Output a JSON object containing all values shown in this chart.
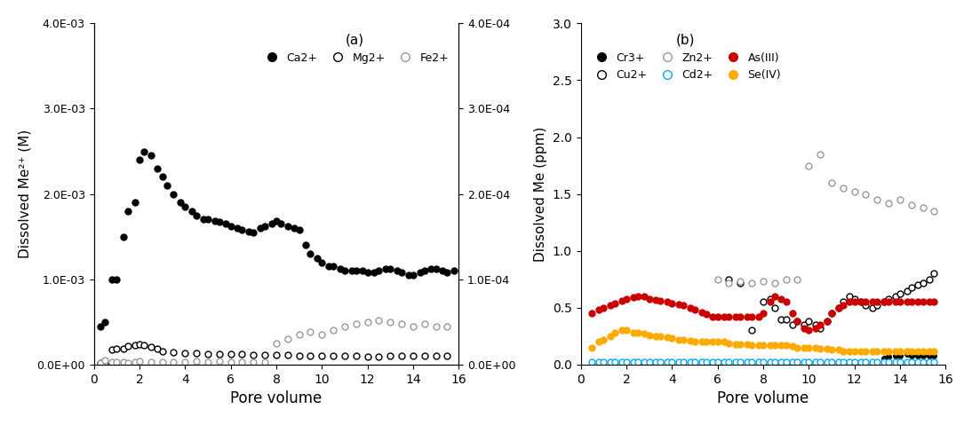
{
  "panel_a": {
    "title": "(a)",
    "xlabel": "Pore volume",
    "ylabel_left": "Dissolved Me²⁺ (M)",
    "ylabel_right": "",
    "xlim": [
      0,
      16
    ],
    "ylim_left": [
      0,
      0.004
    ],
    "ylim_right": [
      0,
      0.0004
    ],
    "yticks_left": [
      0,
      0.001,
      0.002,
      0.003,
      0.004
    ],
    "yticks_right": [
      0,
      0.0001,
      0.0002,
      0.0003,
      0.0004
    ],
    "ytick_labels_left": [
      "0.0E+00",
      "1.0E-03",
      "2.0E-03",
      "3.0E-03",
      "4.0E-03"
    ],
    "ytick_labels_right": [
      "0.0E+00",
      "1.0E-04",
      "2.0E-04",
      "3.0E-04",
      "4.0E-04"
    ],
    "Ca2+": {
      "x": [
        0.3,
        0.5,
        0.8,
        1.0,
        1.3,
        1.5,
        1.8,
        2.0,
        2.2,
        2.5,
        2.8,
        3.0,
        3.2,
        3.5,
        3.8,
        4.0,
        4.3,
        4.5,
        4.8,
        5.0,
        5.3,
        5.5,
        5.8,
        6.0,
        6.3,
        6.5,
        6.8,
        7.0,
        7.3,
        7.5,
        7.8,
        8.0,
        8.2,
        8.5,
        8.8,
        9.0,
        9.3,
        9.5,
        9.8,
        10.0,
        10.3,
        10.5,
        10.8,
        11.0,
        11.3,
        11.5,
        11.8,
        12.0,
        12.3,
        12.5,
        12.8,
        13.0,
        13.3,
        13.5,
        13.8,
        14.0,
        14.3,
        14.5,
        14.8,
        15.0,
        15.3,
        15.5,
        15.8
      ],
      "y": [
        0.00045,
        0.0005,
        0.001,
        0.001,
        0.0015,
        0.0018,
        0.0019,
        0.0024,
        0.0025,
        0.00245,
        0.0023,
        0.0022,
        0.0021,
        0.002,
        0.0019,
        0.00185,
        0.0018,
        0.00175,
        0.0017,
        0.0017,
        0.00168,
        0.00167,
        0.00165,
        0.00162,
        0.0016,
        0.00158,
        0.00156,
        0.00155,
        0.0016,
        0.00162,
        0.00165,
        0.00168,
        0.00165,
        0.00162,
        0.0016,
        0.00158,
        0.0014,
        0.0013,
        0.00125,
        0.0012,
        0.00115,
        0.00115,
        0.00112,
        0.0011,
        0.0011,
        0.0011,
        0.0011,
        0.00108,
        0.00108,
        0.0011,
        0.00112,
        0.00112,
        0.0011,
        0.00108,
        0.00105,
        0.00105,
        0.00108,
        0.0011,
        0.00112,
        0.00112,
        0.0011,
        0.00108,
        0.0011
      ],
      "color": "#000000",
      "marker": "o",
      "filled": true,
      "label": "Ca2+"
    },
    "Mg2+": {
      "x": [
        0.3,
        0.5,
        0.8,
        1.0,
        1.3,
        1.5,
        1.8,
        2.0,
        2.2,
        2.5,
        2.8,
        3.0,
        3.5,
        4.0,
        4.5,
        5.0,
        5.5,
        6.0,
        6.5,
        7.0,
        7.5,
        8.0,
        8.5,
        9.0,
        9.5,
        10.0,
        10.5,
        11.0,
        11.5,
        12.0,
        12.5,
        13.0,
        13.5,
        14.0,
        14.5,
        15.0,
        15.5
      ],
      "y": [
        2e-05,
        1e-05,
        0.00018,
        0.000185,
        0.00019,
        0.00022,
        0.00023,
        0.000235,
        0.000225,
        0.000205,
        0.000185,
        0.00016,
        0.000145,
        0.000138,
        0.00013,
        0.000128,
        0.000125,
        0.000122,
        0.00012,
        0.000118,
        0.000115,
        0.000112,
        0.00011,
        0.000108,
        0.000105,
        0.000102,
        0.0001,
        0.0001,
        9.8e-05,
        9.5e-05,
        9.5e-05,
        9.8e-05,
        0.0001,
        9.8e-05,
        0.0001,
        0.0001,
        0.0001
      ],
      "color": "#000000",
      "marker": "o",
      "filled": false,
      "label": "Mg2+"
    },
    "Fe2+": {
      "x": [
        0.3,
        0.5,
        0.8,
        1.0,
        1.3,
        1.5,
        1.8,
        2.0,
        2.5,
        3.0,
        3.5,
        4.0,
        4.5,
        5.0,
        5.5,
        6.0,
        6.5,
        7.0,
        7.5,
        8.0,
        8.5,
        9.0,
        9.5,
        10.0,
        10.5,
        11.0,
        11.5,
        12.0,
        12.5,
        13.0,
        13.5,
        14.0,
        14.5,
        15.0,
        15.5
      ],
      "y": [
        2e-06,
        5e-06,
        3e-06,
        3e-06,
        3e-06,
        2e-06,
        3e-06,
        4e-06,
        3e-06,
        3e-06,
        3e-06,
        3e-06,
        4e-06,
        3e-06,
        4e-06,
        3e-06,
        3e-06,
        3e-06,
        3e-06,
        2.5e-05,
        3e-05,
        3.5e-05,
        3.8e-05,
        3.5e-05,
        4e-05,
        4.5e-05,
        4.8e-05,
        5e-05,
        5.2e-05,
        5e-05,
        4.8e-05,
        4.5e-05,
        4.8e-05,
        4.5e-05,
        4.5e-05
      ],
      "color": "#aaaaaa",
      "marker": "o",
      "filled": false,
      "label": "Fe2+"
    }
  },
  "panel_b": {
    "title": "(b)",
    "xlabel": "Pore volume",
    "ylabel": "Dissolved Me (ppm)",
    "xlim": [
      0,
      16
    ],
    "ylim": [
      0,
      3.0
    ],
    "yticks": [
      0,
      0.5,
      1.0,
      1.5,
      2.0,
      2.5,
      3.0
    ],
    "Cr3+": {
      "x": [
        0.5,
        0.8,
        1.0,
        1.3,
        1.5,
        1.8,
        2.0,
        2.3,
        2.5,
        2.8,
        3.0,
        3.3,
        3.5,
        3.8,
        4.0,
        4.3,
        4.5,
        4.8,
        5.0,
        5.3,
        5.5,
        5.8,
        6.0,
        6.3,
        6.5,
        6.8,
        7.0,
        7.3,
        7.5,
        7.8,
        8.0,
        8.3,
        8.5,
        8.8,
        9.0,
        9.3,
        9.5,
        9.8,
        10.0,
        10.3,
        10.5,
        10.8,
        11.0,
        11.3,
        11.5,
        11.8,
        12.0,
        12.3,
        12.5,
        12.8,
        13.0,
        13.3,
        13.5,
        13.8,
        14.0,
        14.3,
        14.5,
        14.8,
        15.0,
        15.3,
        15.5
      ],
      "y": [
        0.02,
        0.02,
        0.02,
        0.02,
        0.02,
        0.02,
        0.02,
        0.02,
        0.02,
        0.02,
        0.02,
        0.02,
        0.02,
        0.02,
        0.02,
        0.02,
        0.02,
        0.02,
        0.02,
        0.02,
        0.02,
        0.02,
        0.02,
        0.02,
        0.02,
        0.02,
        0.02,
        0.02,
        0.02,
        0.02,
        0.02,
        0.02,
        0.02,
        0.02,
        0.02,
        0.02,
        0.02,
        0.02,
        0.02,
        0.02,
        0.02,
        0.02,
        0.02,
        0.02,
        0.02,
        0.02,
        0.02,
        0.02,
        0.02,
        0.02,
        0.02,
        0.05,
        0.07,
        0.08,
        0.08,
        0.09,
        0.08,
        0.08,
        0.08,
        0.08,
        0.08
      ],
      "color": "#000000",
      "marker": "o",
      "filled": true,
      "label": "Cr3+"
    },
    "Cu2+": {
      "x": [
        6.5,
        7.0,
        7.5,
        8.0,
        8.3,
        8.5,
        8.8,
        9.0,
        9.3,
        9.5,
        9.8,
        10.0,
        10.3,
        10.5,
        10.8,
        11.0,
        11.3,
        11.5,
        11.8,
        12.0,
        12.3,
        12.5,
        12.8,
        13.0,
        13.3,
        13.5,
        13.8,
        14.0,
        14.3,
        14.5,
        14.8,
        15.0,
        15.3,
        15.5
      ],
      "y": [
        0.75,
        0.72,
        0.3,
        0.55,
        0.58,
        0.5,
        0.4,
        0.4,
        0.35,
        0.38,
        0.35,
        0.38,
        0.35,
        0.32,
        0.38,
        0.45,
        0.5,
        0.55,
        0.6,
        0.58,
        0.55,
        0.52,
        0.5,
        0.52,
        0.55,
        0.58,
        0.6,
        0.62,
        0.65,
        0.68,
        0.7,
        0.72,
        0.75,
        0.8
      ],
      "color": "#000000",
      "marker": "o",
      "filled": false,
      "label": "Cu2+"
    },
    "Zn2+": {
      "x": [
        6.0,
        6.5,
        7.0,
        7.5,
        8.0,
        8.5,
        9.0,
        9.5,
        10.0,
        10.5,
        11.0,
        11.5,
        12.0,
        12.5,
        13.0,
        13.5,
        14.0,
        14.5,
        15.0,
        15.5
      ],
      "y": [
        0.75,
        0.72,
        0.73,
        0.72,
        0.73,
        0.72,
        0.75,
        0.75,
        1.75,
        1.85,
        1.6,
        1.55,
        1.52,
        1.5,
        1.45,
        1.42,
        1.45,
        1.4,
        1.38,
        1.35
      ],
      "color": "#aaaaaa",
      "marker": "o",
      "filled": false,
      "label": "Zn2+"
    },
    "Cd2+": {
      "x": [
        0.5,
        0.8,
        1.0,
        1.3,
        1.5,
        1.8,
        2.0,
        2.3,
        2.5,
        2.8,
        3.0,
        3.3,
        3.5,
        3.8,
        4.0,
        4.3,
        4.5,
        4.8,
        5.0,
        5.3,
        5.5,
        5.8,
        6.0,
        6.3,
        6.5,
        6.8,
        7.0,
        7.3,
        7.5,
        7.8,
        8.0,
        8.3,
        8.5,
        8.8,
        9.0,
        9.3,
        9.5,
        9.8,
        10.0,
        10.3,
        10.5,
        10.8,
        11.0,
        11.3,
        11.5,
        11.8,
        12.0,
        12.3,
        12.5,
        12.8,
        13.0,
        13.3,
        13.5,
        13.8,
        14.0,
        14.3,
        14.5,
        14.8,
        15.0,
        15.3,
        15.5
      ],
      "y": [
        0.02,
        0.02,
        0.02,
        0.02,
        0.02,
        0.02,
        0.02,
        0.02,
        0.02,
        0.02,
        0.02,
        0.02,
        0.02,
        0.02,
        0.02,
        0.02,
        0.02,
        0.02,
        0.02,
        0.02,
        0.02,
        0.02,
        0.02,
        0.02,
        0.02,
        0.02,
        0.02,
        0.02,
        0.02,
        0.02,
        0.02,
        0.02,
        0.02,
        0.02,
        0.02,
        0.02,
        0.02,
        0.02,
        0.02,
        0.02,
        0.02,
        0.02,
        0.02,
        0.02,
        0.02,
        0.02,
        0.02,
        0.02,
        0.02,
        0.02,
        0.02,
        0.02,
        0.02,
        0.02,
        0.02,
        0.02,
        0.02,
        0.02,
        0.02,
        0.02,
        0.02
      ],
      "color": "#00aaff",
      "marker": "o",
      "filled": false,
      "label": "Cd2+"
    },
    "As(III)": {
      "x": [
        0.5,
        0.8,
        1.0,
        1.3,
        1.5,
        1.8,
        2.0,
        2.3,
        2.5,
        2.8,
        3.0,
        3.3,
        3.5,
        3.8,
        4.0,
        4.3,
        4.5,
        4.8,
        5.0,
        5.3,
        5.5,
        5.8,
        6.0,
        6.3,
        6.5,
        6.8,
        7.0,
        7.3,
        7.5,
        7.8,
        8.0,
        8.3,
        8.5,
        8.8,
        9.0,
        9.3,
        9.5,
        9.8,
        10.0,
        10.3,
        10.5,
        10.8,
        11.0,
        11.3,
        11.5,
        11.8,
        12.0,
        12.3,
        12.5,
        12.8,
        13.0,
        13.3,
        13.5,
        13.8,
        14.0,
        14.3,
        14.5,
        14.8,
        15.0,
        15.3,
        15.5
      ],
      "y": [
        0.45,
        0.48,
        0.5,
        0.52,
        0.54,
        0.56,
        0.58,
        0.59,
        0.6,
        0.6,
        0.58,
        0.57,
        0.56,
        0.55,
        0.54,
        0.53,
        0.52,
        0.5,
        0.48,
        0.46,
        0.44,
        0.42,
        0.42,
        0.42,
        0.42,
        0.42,
        0.42,
        0.42,
        0.42,
        0.42,
        0.45,
        0.55,
        0.6,
        0.58,
        0.55,
        0.45,
        0.38,
        0.32,
        0.3,
        0.32,
        0.35,
        0.38,
        0.45,
        0.5,
        0.52,
        0.55,
        0.55,
        0.55,
        0.55,
        0.55,
        0.55,
        0.55,
        0.55,
        0.55,
        0.55,
        0.55,
        0.55,
        0.55,
        0.55,
        0.55,
        0.55
      ],
      "color": "#cc0000",
      "marker": "o",
      "filled": true,
      "label": "As(III)"
    },
    "Se(IV)": {
      "x": [
        0.5,
        0.8,
        1.0,
        1.3,
        1.5,
        1.8,
        2.0,
        2.3,
        2.5,
        2.8,
        3.0,
        3.3,
        3.5,
        3.8,
        4.0,
        4.3,
        4.5,
        4.8,
        5.0,
        5.3,
        5.5,
        5.8,
        6.0,
        6.3,
        6.5,
        6.8,
        7.0,
        7.3,
        7.5,
        7.8,
        8.0,
        8.3,
        8.5,
        8.8,
        9.0,
        9.3,
        9.5,
        9.8,
        10.0,
        10.3,
        10.5,
        10.8,
        11.0,
        11.3,
        11.5,
        11.8,
        12.0,
        12.3,
        12.5,
        12.8,
        13.0,
        13.3,
        13.5,
        13.8,
        14.0,
        14.3,
        14.5,
        14.8,
        15.0,
        15.3,
        15.5
      ],
      "y": [
        0.15,
        0.2,
        0.22,
        0.25,
        0.28,
        0.3,
        0.3,
        0.28,
        0.28,
        0.27,
        0.26,
        0.25,
        0.25,
        0.24,
        0.23,
        0.22,
        0.22,
        0.21,
        0.2,
        0.2,
        0.2,
        0.2,
        0.2,
        0.2,
        0.19,
        0.18,
        0.18,
        0.18,
        0.17,
        0.17,
        0.17,
        0.17,
        0.17,
        0.17,
        0.17,
        0.16,
        0.15,
        0.15,
        0.15,
        0.15,
        0.14,
        0.14,
        0.13,
        0.13,
        0.12,
        0.12,
        0.12,
        0.12,
        0.12,
        0.12,
        0.12,
        0.12,
        0.12,
        0.12,
        0.12,
        0.12,
        0.12,
        0.12,
        0.12,
        0.12,
        0.12
      ],
      "color": "#ffaa00",
      "marker": "o",
      "filled": true,
      "label": "Se(IV)"
    }
  }
}
